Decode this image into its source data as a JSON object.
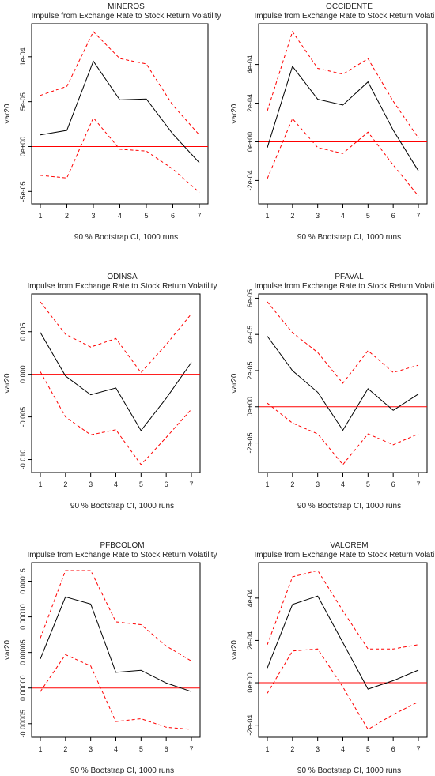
{
  "common": {
    "subtitle": "Impulse from Exchange Rate to Stock Return Volatility",
    "ylabel": "var20",
    "xlabel": "90 % Bootstrap CI,  1000 runs"
  },
  "colors": {
    "impulse": "#000000",
    "bands": "#ff0000",
    "zero_line": "#ff0000",
    "axis": "#000000"
  },
  "chart_data": [
    {
      "type": "line",
      "title": "MINEROS",
      "subtitle": "Impulse from Exchange Rate to Stock Return Volatility",
      "xlabel": "90 % Bootstrap CI,  1000 runs",
      "ylabel": "var20",
      "x": [
        1,
        2,
        3,
        4,
        5,
        6,
        7
      ],
      "ylim": [
        -5.5e-05,
        0.000128
      ],
      "yticks": [
        -5e-05,
        0,
        5e-05,
        0.0001
      ],
      "ytick_labels": [
        "-5e-05",
        "0e+00",
        "5e-05",
        "1e-04"
      ],
      "series": [
        {
          "role": "impulse",
          "style": "solid",
          "values": [
            1.3e-05,
            1.8e-05,
            9.5e-05,
            5.2e-05,
            5.3e-05,
            1.4e-05,
            -1.8e-05
          ]
        },
        {
          "role": "upper",
          "style": "dashed",
          "values": [
            5.7e-05,
            6.7e-05,
            0.000128,
            9.8e-05,
            9.2e-05,
            4.6e-05,
            1.3e-05
          ]
        },
        {
          "role": "lower",
          "style": "dashed",
          "values": [
            -3.2e-05,
            -3.5e-05,
            3.2e-05,
            -3e-06,
            -5e-06,
            -2.5e-05,
            -5.1e-05
          ]
        }
      ],
      "zero_line": 0
    },
    {
      "type": "line",
      "title": "OCCIDENTE",
      "subtitle": "Impulse from Exchange Rate to Stock Return Volatility",
      "xlabel": "90 % Bootstrap CI,  1000 runs",
      "ylabel": "var20",
      "x": [
        1,
        2,
        3,
        4,
        5,
        6,
        7
      ],
      "ylim": [
        -0.00028,
        0.00057
      ],
      "yticks": [
        -0.0002,
        0,
        0.0002,
        0.0004
      ],
      "ytick_labels": [
        "-2e-04",
        "0e+00",
        "2e-04",
        "4e-04"
      ],
      "series": [
        {
          "role": "impulse",
          "style": "solid",
          "values": [
            -3e-05,
            0.00039,
            0.00022,
            0.00019,
            0.00031,
            6e-05,
            -0.00015
          ]
        },
        {
          "role": "upper",
          "style": "dashed",
          "values": [
            0.00016,
            0.00057,
            0.00038,
            0.00035,
            0.00043,
            0.00021,
            2e-05
          ]
        },
        {
          "role": "lower",
          "style": "dashed",
          "values": [
            -0.00019,
            0.00012,
            -3e-05,
            -6e-05,
            5e-05,
            -0.00012,
            -0.00028
          ]
        }
      ],
      "zero_line": 0
    },
    {
      "type": "line",
      "title": "ODINSA",
      "subtitle": "Impulse from Exchange Rate to Stock Return Volatility",
      "xlabel": "90 % Bootstrap CI,  1000 runs",
      "ylabel": "var20",
      "x": [
        1,
        2,
        3,
        4,
        5,
        6,
        7
      ],
      "ylim": [
        -0.0106,
        0.0085
      ],
      "yticks": [
        -0.01,
        -0.005,
        0,
        0.005
      ],
      "ytick_labels": [
        "-0.010",
        "-0.005",
        "0.000",
        "0.005"
      ],
      "series": [
        {
          "role": "impulse",
          "style": "solid",
          "values": [
            0.0049,
            -0.0002,
            -0.0024,
            -0.0016,
            -0.0066,
            -0.0028,
            0.0014
          ]
        },
        {
          "role": "upper",
          "style": "dashed",
          "values": [
            0.0085,
            0.0047,
            0.0032,
            0.0042,
            0.0002,
            0.0035,
            0.0071
          ]
        },
        {
          "role": "lower",
          "style": "dashed",
          "values": [
            0.0003,
            -0.005,
            -0.0071,
            -0.0065,
            -0.0106,
            -0.0074,
            -0.0041
          ]
        }
      ],
      "zero_line": 0
    },
    {
      "type": "line",
      "title": "PFAVAL",
      "subtitle": "Impulse from Exchange Rate to Stock Return Volatility",
      "xlabel": "90 % Bootstrap CI,  1000 runs",
      "ylabel": "var20",
      "x": [
        1,
        2,
        3,
        4,
        5,
        6,
        7
      ],
      "ylim": [
        -3.2e-05,
        5.8e-05
      ],
      "yticks": [
        -2e-05,
        0,
        2e-05,
        4e-05,
        6e-05
      ],
      "ytick_labels": [
        "-2e-05",
        "0e+00",
        "2e-05",
        "4e-05",
        "6e-05"
      ],
      "series": [
        {
          "role": "impulse",
          "style": "solid",
          "values": [
            3.9e-05,
            2e-05,
            8e-06,
            -1.3e-05,
            1e-05,
            -2e-06,
            7e-06
          ]
        },
        {
          "role": "upper",
          "style": "dashed",
          "values": [
            5.8e-05,
            4.1e-05,
            3e-05,
            1.3e-05,
            3.1e-05,
            1.9e-05,
            2.3e-05
          ]
        },
        {
          "role": "lower",
          "style": "dashed",
          "values": [
            2e-06,
            -9e-06,
            -1.5e-05,
            -3.2e-05,
            -1.5e-05,
            -2.1e-05,
            -1.5e-05
          ]
        }
      ],
      "zero_line": 0
    },
    {
      "type": "line",
      "title": "PFBCOLOM",
      "subtitle": "Impulse from Exchange Rate to Stock Return Volatility",
      "xlabel": "90 % Bootstrap CI,  1000 runs",
      "ylabel": "var20",
      "x": [
        1,
        2,
        3,
        4,
        5,
        6,
        7
      ],
      "ylim": [
        -5.8e-05,
        0.000165
      ],
      "yticks": [
        -5e-05,
        0,
        5e-05,
        0.0001,
        0.00015
      ],
      "ytick_labels": [
        "-0.00005",
        "0.00000",
        "0.00005",
        "0.00010",
        "0.00015"
      ],
      "series": [
        {
          "role": "impulse",
          "style": "solid",
          "values": [
            4.1e-05,
            0.000128,
            0.000118,
            2.2e-05,
            2.5e-05,
            7e-06,
            -5e-06
          ]
        },
        {
          "role": "upper",
          "style": "dashed",
          "values": [
            7e-05,
            0.000165,
            0.000165,
            9.3e-05,
            8.9e-05,
            5.9e-05,
            3.8e-05
          ]
        },
        {
          "role": "lower",
          "style": "dashed",
          "values": [
            -5e-06,
            4.7e-05,
            3.1e-05,
            -4.7e-05,
            -4.3e-05,
            -5.5e-05,
            -5.8e-05
          ]
        }
      ],
      "zero_line": 0
    },
    {
      "type": "line",
      "title": "VALOREM",
      "subtitle": "Impulse from Exchange Rate to Stock Return Volatility",
      "xlabel": "90 % Bootstrap CI,  1000 runs",
      "ylabel": "var20",
      "x": [
        1,
        2,
        3,
        4,
        5,
        6,
        7
      ],
      "ylim": [
        -0.00022,
        0.00053
      ],
      "yticks": [
        -0.0002,
        0,
        0.0002,
        0.0004
      ],
      "ytick_labels": [
        "-2e-04",
        "0e+00",
        "2e-04",
        "4e-04"
      ],
      "series": [
        {
          "role": "impulse",
          "style": "solid",
          "values": [
            7e-05,
            0.00037,
            0.00041,
            0.00019,
            -3e-05,
            1e-05,
            6e-05
          ]
        },
        {
          "role": "upper",
          "style": "dashed",
          "values": [
            0.00018,
            0.0005,
            0.00053,
            0.00034,
            0.00016,
            0.00016,
            0.00018
          ]
        },
        {
          "role": "lower",
          "style": "dashed",
          "values": [
            -5e-05,
            0.00015,
            0.00016,
            -2e-05,
            -0.00022,
            -0.00015,
            -9e-05
          ]
        }
      ],
      "zero_line": 0
    }
  ]
}
